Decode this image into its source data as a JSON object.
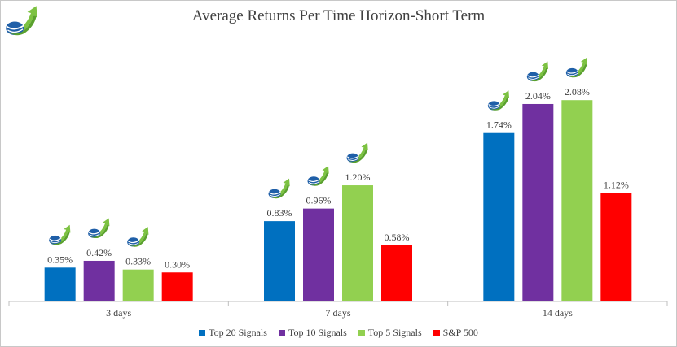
{
  "chart_data": {
    "type": "bar",
    "title": "Average Returns Per Time Horizon-Short Term",
    "xlabel": "",
    "ylabel": "",
    "categories": [
      "3 days",
      "7 days",
      "14 days"
    ],
    "series": [
      {
        "name": "Top 20 Signals",
        "color": "#0070C0",
        "values": [
          0.35,
          0.83,
          1.74
        ],
        "labels": [
          "0.35%",
          "0.83%",
          "1.74%"
        ]
      },
      {
        "name": "Top 10 Signals",
        "color": "#7030A0",
        "values": [
          0.42,
          0.96,
          2.04
        ],
        "labels": [
          "0.42%",
          "0.96%",
          "2.04%"
        ]
      },
      {
        "name": "Top 5 Signals",
        "color": "#92D050",
        "values": [
          0.33,
          1.2,
          2.08
        ],
        "labels": [
          "0.33%",
          "1.20%",
          "2.08%"
        ]
      },
      {
        "name": "S&P 500",
        "color": "#FF0000",
        "values": [
          0.3,
          0.58,
          1.12
        ],
        "labels": [
          "0.30%",
          "0.58%",
          "1.12%"
        ]
      }
    ],
    "ylim": [
      0,
      2.3
    ],
    "grid": false,
    "legend_position": "bottom",
    "logo_on_bars": [
      "Top 20 Signals",
      "Top 10 Signals",
      "Top 5 Signals"
    ]
  },
  "colors": {
    "axis": "#bfbfbf",
    "text": "#404040"
  },
  "icons": {
    "logo": "rising-arrow-globe-logo-icon"
  }
}
